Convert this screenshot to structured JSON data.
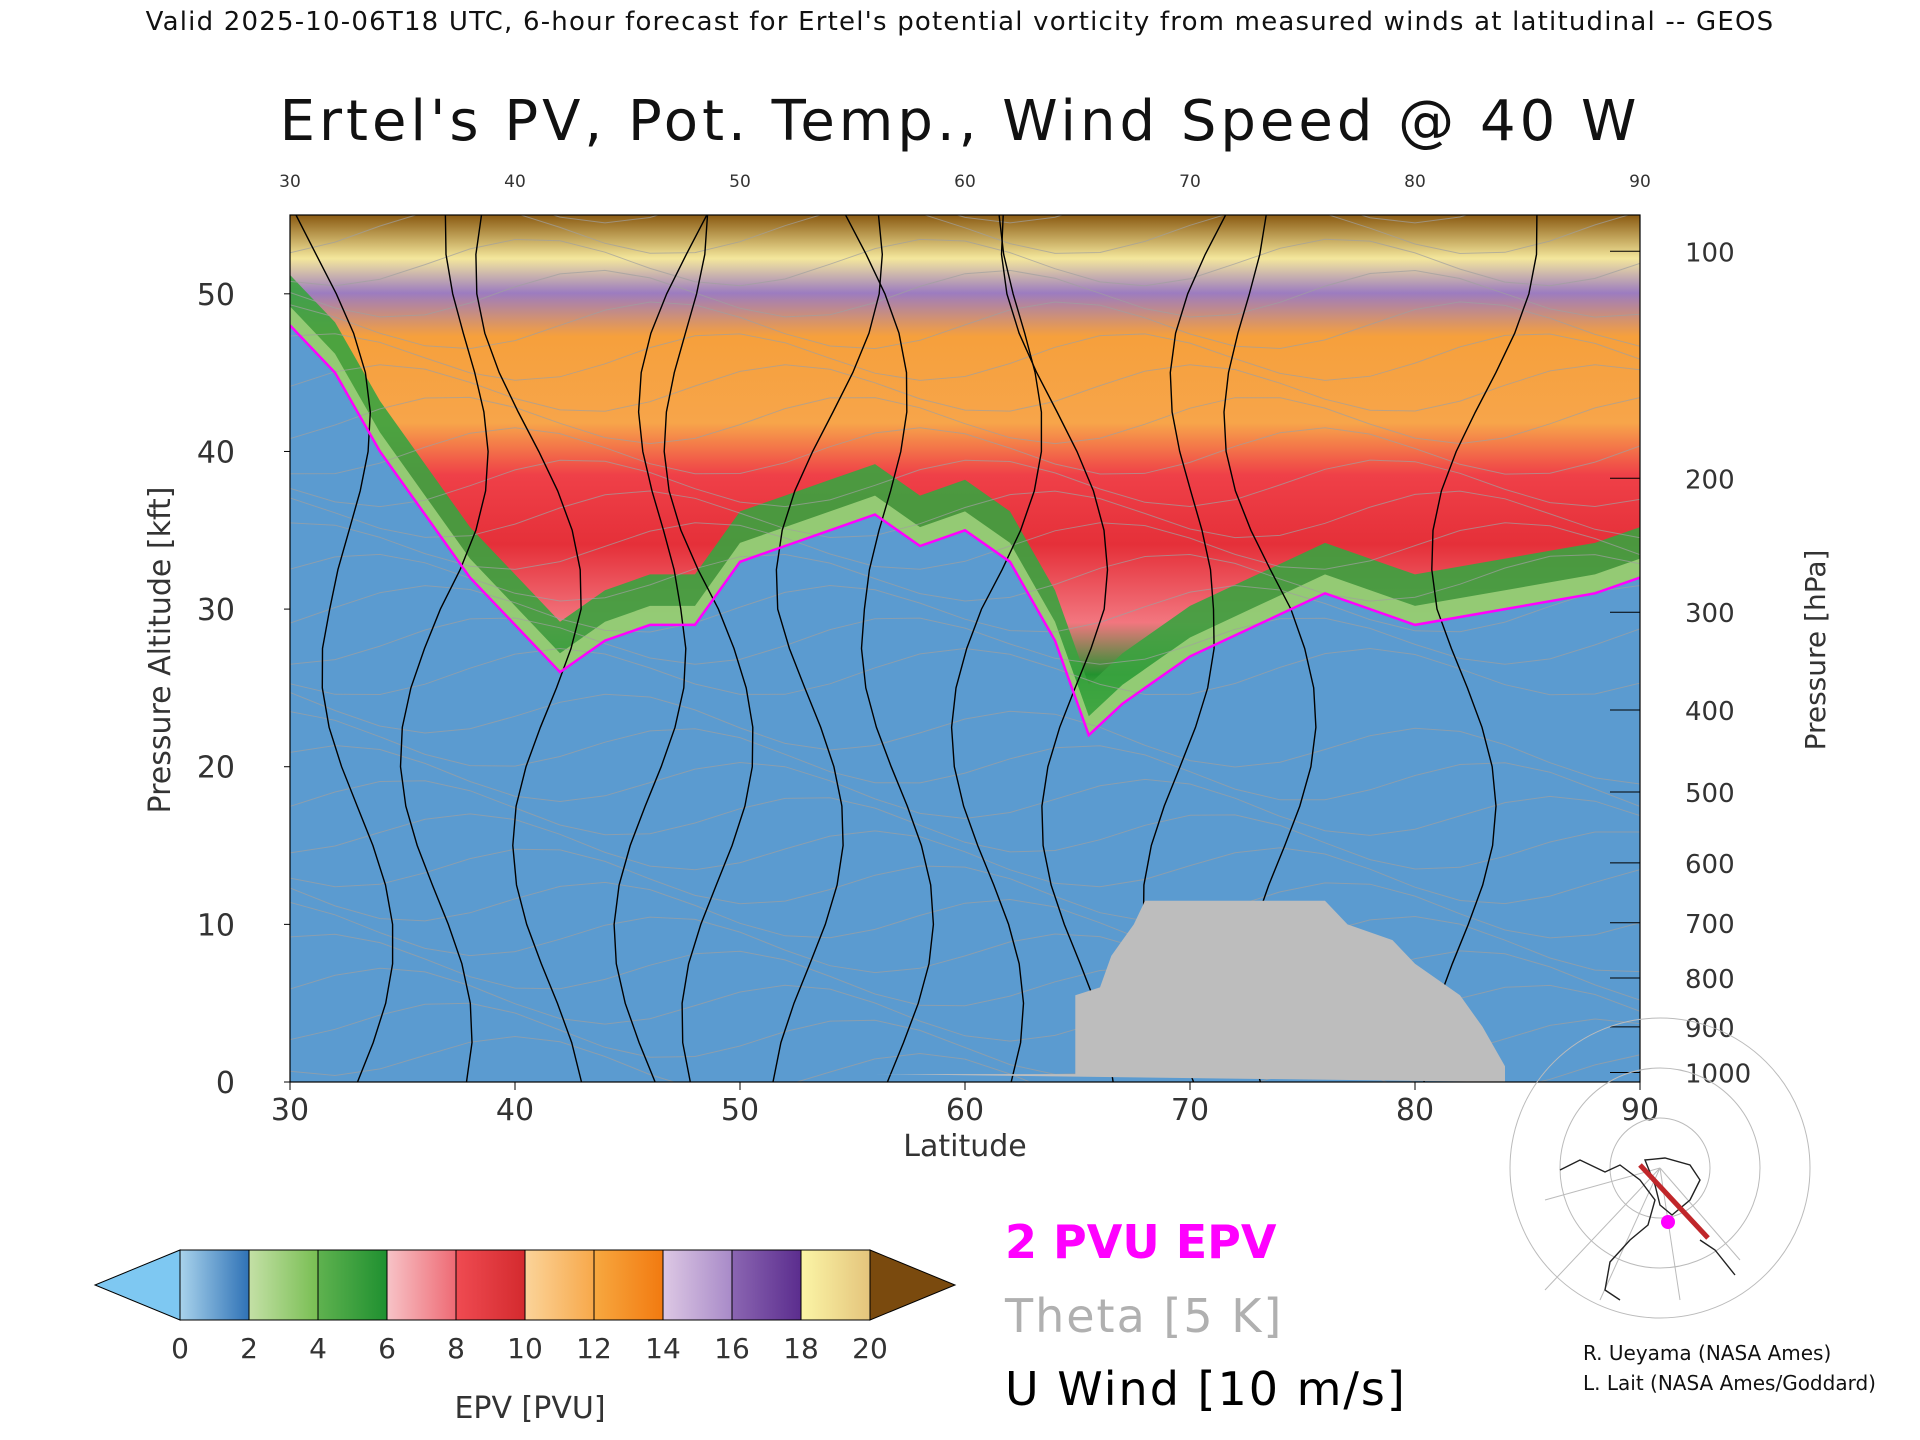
{
  "header": {
    "valid_line": "Valid 2025-10-06T18 UTC, 6-hour forecast for Ertel's potential vorticity from measured winds at latitudinal -- GEOS"
  },
  "chart_data": {
    "type": "heatmap",
    "title": "Ertel's PV, Pot. Temp., Wind Speed @ 40 W",
    "xlabel": "Latitude",
    "ylabel_left": "Pressure Altitude [kft]",
    "ylabel_right": "Pressure [hPa]",
    "xlim": [
      30,
      90
    ],
    "ylim": [
      0,
      55
    ],
    "x_ticks": [
      "30",
      "40",
      "50",
      "60",
      "70",
      "80",
      "90"
    ],
    "y_ticks": [
      "0",
      "10",
      "20",
      "30",
      "40",
      "50"
    ],
    "pressure_ticks": [
      {
        "label": "100",
        "kft": 52.7
      },
      {
        "label": "200",
        "kft": 38.3
      },
      {
        "label": "300",
        "kft": 29.8
      },
      {
        "label": "400",
        "kft": 23.6
      },
      {
        "label": "500",
        "kft": 18.4
      },
      {
        "label": "600",
        "kft": 13.9
      },
      {
        "label": "700",
        "kft": 10.1
      },
      {
        "label": "800",
        "kft": 6.6
      },
      {
        "label": "900",
        "kft": 3.5
      },
      {
        "label": "1000",
        "kft": 0.6
      }
    ],
    "tropopause_2pvu_kft": [
      [
        30,
        48
      ],
      [
        32,
        45
      ],
      [
        34,
        40
      ],
      [
        36,
        36
      ],
      [
        38,
        32
      ],
      [
        40,
        29
      ],
      [
        42,
        26
      ],
      [
        44,
        28
      ],
      [
        46,
        29
      ],
      [
        48,
        29
      ],
      [
        50,
        33
      ],
      [
        52,
        34
      ],
      [
        54,
        35
      ],
      [
        56,
        36
      ],
      [
        58,
        34
      ],
      [
        60,
        35
      ],
      [
        62,
        33
      ],
      [
        64,
        28
      ],
      [
        65.5,
        22
      ],
      [
        67,
        24
      ],
      [
        70,
        27
      ],
      [
        73,
        29
      ],
      [
        76,
        31
      ],
      [
        80,
        29
      ],
      [
        84,
        30
      ],
      [
        88,
        31
      ],
      [
        90,
        32
      ]
    ],
    "terrain_kft": [
      [
        56,
        0.5
      ],
      [
        64.9,
        0.5
      ],
      [
        64.9,
        5.5
      ],
      [
        66,
        6
      ],
      [
        66.5,
        8
      ],
      [
        67,
        9
      ],
      [
        67.5,
        10
      ],
      [
        68,
        11.5
      ],
      [
        76,
        11.5
      ],
      [
        77,
        10
      ],
      [
        79,
        9
      ],
      [
        80,
        7.5
      ],
      [
        82,
        5.5
      ],
      [
        83,
        3.5
      ],
      [
        84,
        1
      ],
      [
        84,
        0
      ]
    ],
    "colorbar": {
      "label": "EPV [PVU]",
      "ticks": [
        "0",
        "2",
        "4",
        "6",
        "8",
        "10",
        "12",
        "14",
        "16",
        "18",
        "20"
      ],
      "under_color": "#7ec8f2",
      "over_color": "#7a4a0e",
      "bins": [
        {
          "range": [
            0,
            2
          ],
          "from": "#a9d3ec",
          "to": "#2f72b6"
        },
        {
          "range": [
            2,
            4
          ],
          "from": "#c4e0a6",
          "to": "#78be52"
        },
        {
          "range": [
            4,
            6
          ],
          "from": "#5fb24f",
          "to": "#1f9030"
        },
        {
          "range": [
            6,
            8
          ],
          "from": "#f7c3c7",
          "to": "#ee6a74"
        },
        {
          "range": [
            8,
            10
          ],
          "from": "#ef4b52",
          "to": "#d42a2e"
        },
        {
          "range": [
            10,
            12
          ],
          "from": "#fbd49a",
          "to": "#f7a84a"
        },
        {
          "range": [
            12,
            14
          ],
          "from": "#f7a840",
          "to": "#f27a10"
        },
        {
          "range": [
            14,
            16
          ],
          "from": "#ddc8e4",
          "to": "#a88ac8"
        },
        {
          "range": [
            16,
            18
          ],
          "from": "#8b66b2",
          "to": "#5b2d8e"
        },
        {
          "range": [
            18,
            20
          ],
          "from": "#fbf5a6",
          "to": "#e4c47c"
        }
      ]
    },
    "legend": [
      {
        "text": "2 PVU EPV",
        "color": "#ff00ff"
      },
      {
        "text": "Theta [5 K]",
        "color": "#b0b0b0"
      },
      {
        "text": "U Wind [10 m/s]",
        "color": "#000000"
      }
    ]
  },
  "credits": {
    "line1": "R. Ueyama (NASA Ames)",
    "line2": "L. Lait (NASA Ames/Goddard)"
  },
  "colors": {
    "tropopause": "#ff00ff",
    "terrain": "#bdbdbd",
    "theta": "#a0a0a0",
    "wind": "#000000",
    "section_line": "#c0262a",
    "location_dot": "#ff00ff"
  }
}
